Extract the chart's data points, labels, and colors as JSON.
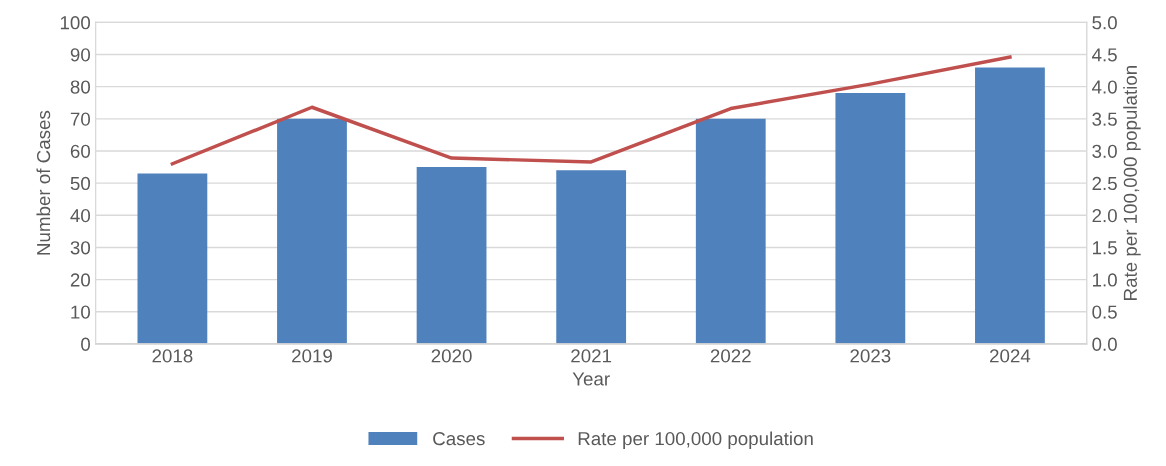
{
  "chart_data": {
    "type": "bar",
    "xlabel": "Year",
    "ylabel": "Number of Cases",
    "y2label": "Rate per 100,000 population",
    "categories": [
      "2018",
      "2019",
      "2020",
      "2021",
      "2022",
      "2023",
      "2024"
    ],
    "series": [
      {
        "name": "Cases",
        "color": "#4f81bd",
        "values": [
          53,
          70,
          55,
          54,
          70,
          78,
          86
        ]
      },
      {
        "name": "Rate per 100,000 population",
        "type": "line",
        "axis": "y2",
        "color": "#c0504d",
        "values": [
          2.8,
          3.68,
          2.89,
          2.83,
          3.66,
          4.04,
          4.46
        ]
      }
    ],
    "ylim": [
      0,
      100
    ],
    "yticks": [
      0,
      10,
      20,
      30,
      40,
      50,
      60,
      70,
      80,
      90,
      100
    ],
    "y2lim": [
      0,
      5
    ],
    "y2ticks": [
      {
        "value": 0,
        "label": "0.0"
      },
      {
        "value": 0.5,
        "label": "0.5"
      },
      {
        "value": 1,
        "label": "1.0"
      },
      {
        "value": 1.5,
        "label": "1.5"
      },
      {
        "value": 2,
        "label": "2.0"
      },
      {
        "value": 2.5,
        "label": "2.5"
      },
      {
        "value": 3,
        "label": "3.0"
      },
      {
        "value": 3.5,
        "label": "3.5"
      },
      {
        "value": 4,
        "label": "4.0"
      },
      {
        "value": 4.5,
        "label": "4.5"
      },
      {
        "value": 5,
        "label": "5.0"
      }
    ],
    "grid": "y",
    "legend": "bottom",
    "marker": "none",
    "line_style": "solid"
  }
}
